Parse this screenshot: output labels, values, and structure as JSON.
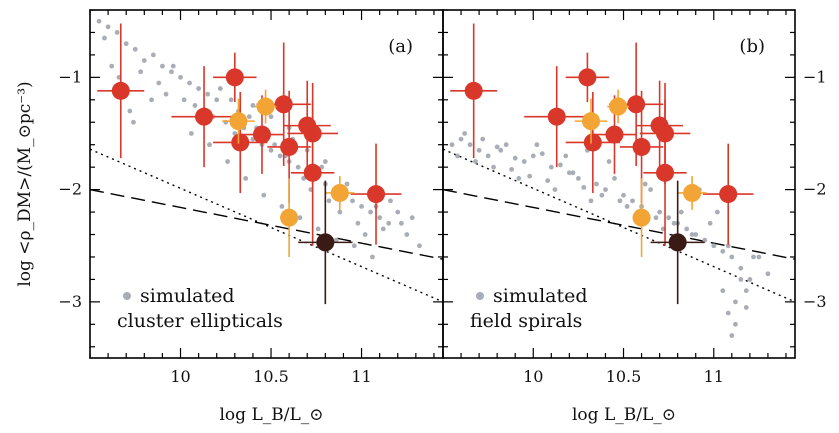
{
  "figure": {
    "ylabel": "log <ρ_DM>/(M_⊙pc⁻³)",
    "panels": [
      "a",
      "b"
    ]
  },
  "chart_data": [
    {
      "panel_label": "(a)",
      "type": "scatter",
      "xlabel": "log L_B/L_⊙",
      "ylabel": "log <ρ_DM>/(M_⊙pc⁻³)",
      "xlim": [
        9.5,
        11.45
      ],
      "ylim": [
        -3.5,
        -0.4
      ],
      "xticks": [
        10,
        10.5,
        11
      ],
      "xtick_labels": [
        "10",
        "10.5",
        "11"
      ],
      "yticks": [
        -1,
        -2,
        -3
      ],
      "ytick_labels": [
        "−1",
        "−2",
        "−3"
      ],
      "legend_label_line1": "simulated",
      "legend_label_line2": "cluster ellipticals",
      "legend_placement": "bottom-left",
      "colors": {
        "simulated": "#a8adb6",
        "red": "#d8372a",
        "orange": "#f2a535",
        "dark": "#3a1a14",
        "line": "#000000"
      },
      "lines": {
        "dashed": {
          "x": [
            9.5,
            11.45
          ],
          "y": [
            -2.0,
            -2.62
          ]
        },
        "dotted": {
          "x": [
            9.5,
            11.45
          ],
          "y": [
            -1.64,
            -3.0
          ]
        }
      },
      "series": [
        {
          "x": [
            9.55,
            9.6,
            9.65,
            9.7,
            9.75,
            9.8,
            9.85,
            9.9,
            9.95,
            10.0,
            10.05,
            10.1,
            10.15,
            10.2,
            9.58,
            9.62,
            9.72,
            9.78,
            9.88,
            9.92,
            10.02,
            10.08,
            10.12,
            10.18,
            10.25,
            10.3,
            10.35,
            10.4,
            10.45,
            10.5,
            10.55,
            10.6,
            10.65,
            10.7,
            10.75,
            10.8,
            10.85,
            10.9,
            10.95,
            11.0,
            11.05,
            11.1,
            11.15,
            11.2,
            11.25,
            10.22,
            10.28,
            10.32,
            10.38,
            10.42,
            10.48,
            10.52,
            10.58,
            10.62,
            10.68,
            10.72,
            10.78,
            10.82,
            10.88,
            10.92,
            10.98,
            11.02,
            11.08,
            11.12,
            9.66,
            9.74,
            9.84,
            9.96,
            10.06,
            10.16,
            10.26,
            10.36,
            10.46,
            10.56,
            10.66,
            10.76,
            10.86,
            10.96,
            11.06,
            11.16,
            11.22,
            11.28,
            11.32,
            10.4,
            10.5,
            10.6,
            10.7,
            10.8,
            10.9
          ],
          "y": [
            -0.5,
            -0.55,
            -0.6,
            -0.7,
            -0.75,
            -0.85,
            -0.8,
            -0.9,
            -0.95,
            -1.0,
            -1.05,
            -1.1,
            -1.15,
            -1.2,
            -0.65,
            -0.9,
            -1.3,
            -0.95,
            -1.05,
            -1.15,
            -1.2,
            -1.25,
            -1.3,
            -1.35,
            -1.4,
            -1.5,
            -1.45,
            -1.55,
            -1.6,
            -1.65,
            -1.7,
            -1.75,
            -1.8,
            -1.85,
            -1.9,
            -1.95,
            -2.0,
            -2.05,
            -2.1,
            -2.15,
            -2.2,
            -2.25,
            -2.3,
            -2.2,
            -2.4,
            -1.1,
            -1.2,
            -1.3,
            -1.35,
            -1.45,
            -1.5,
            -1.6,
            -1.7,
            -1.55,
            -1.9,
            -2.0,
            -1.8,
            -2.1,
            -2.2,
            -1.95,
            -2.3,
            -2.4,
            -2.15,
            -2.35,
            -1.0,
            -1.4,
            -1.2,
            -0.9,
            -1.5,
            -1.6,
            -1.75,
            -1.9,
            -2.05,
            -2.15,
            -2.25,
            -2.35,
            -2.45,
            -2.5,
            -2.6,
            -2.1,
            -2.3,
            -2.25,
            -2.5,
            -1.25,
            -1.35,
            -1.45,
            -1.65,
            -1.75,
            -2.0
          ],
          "role": "simulated"
        },
        {
          "x": [
            9.67,
            10.3,
            10.13,
            10.33,
            10.45,
            10.57,
            10.6,
            10.7,
            10.73,
            10.73,
            11.08
          ],
          "y": [
            -1.12,
            -1.0,
            -1.35,
            -1.58,
            -1.51,
            -1.24,
            -1.62,
            -1.43,
            -1.5,
            -1.85,
            -2.04
          ],
          "xerr": [
            0.13,
            0.12,
            0.18,
            0.15,
            0.12,
            0.15,
            0.12,
            0.13,
            0.14,
            0.12,
            0.14
          ],
          "yerr": [
            0.6,
            0.22,
            0.45,
            0.45,
            0.35,
            0.55,
            0.5,
            0.4,
            0.45,
            0.65,
            0.45
          ],
          "role": "red"
        },
        {
          "x": [
            10.32,
            10.47,
            10.6,
            10.88
          ],
          "y": [
            -1.39,
            -1.26,
            -2.25,
            -2.03
          ],
          "xerr": [
            0.09,
            0.06,
            0.05,
            0.08
          ],
          "yerr": [
            0.2,
            0.15,
            0.35,
            0.15
          ],
          "role": "orange"
        },
        {
          "x": [
            10.8
          ],
          "y": [
            -2.47
          ],
          "xerr": [
            0.15
          ],
          "yerr": [
            0.55
          ],
          "role": "dark"
        }
      ]
    },
    {
      "panel_label": "(b)",
      "type": "scatter",
      "xlabel": "log L_B/L_⊙",
      "ylabel": "log <ρ_DM>/(M_⊙pc⁻³)",
      "xlim": [
        9.5,
        11.45
      ],
      "ylim": [
        -3.5,
        -0.4
      ],
      "xticks": [
        10,
        10.5,
        11
      ],
      "xtick_labels": [
        "10",
        "10.5",
        "11"
      ],
      "yticks": [
        -1,
        -2,
        -3
      ],
      "ytick_labels": [
        "−1",
        "−2",
        "−3"
      ],
      "legend_label_line1": "simulated",
      "legend_label_line2": "field spirals",
      "legend_placement": "bottom-left",
      "colors": {
        "simulated": "#a8adb6",
        "red": "#d8372a",
        "orange": "#f2a535",
        "dark": "#3a1a14",
        "line": "#000000"
      },
      "lines": {
        "dashed": {
          "x": [
            9.5,
            11.45
          ],
          "y": [
            -2.0,
            -2.62
          ]
        },
        "dotted": {
          "x": [
            9.5,
            11.45
          ],
          "y": [
            -1.64,
            -3.0
          ]
        }
      },
      "series": [
        {
          "x": [
            9.55,
            9.6,
            9.65,
            9.7,
            9.75,
            9.8,
            9.85,
            9.9,
            9.95,
            10.0,
            10.05,
            10.1,
            10.15,
            10.2,
            10.25,
            10.3,
            10.35,
            10.4,
            10.45,
            10.5,
            10.55,
            10.6,
            10.65,
            10.7,
            10.75,
            10.8,
            10.85,
            10.9,
            10.95,
            11.0,
            11.05,
            11.1,
            11.15,
            11.2,
            11.25,
            11.3,
            9.58,
            9.68,
            9.78,
            9.88,
            9.98,
            10.08,
            10.18,
            10.28,
            10.38,
            10.48,
            10.58,
            10.68,
            10.78,
            10.88,
            10.98,
            11.08,
            11.18,
            9.62,
            9.72,
            9.82,
            9.92,
            10.02,
            10.12,
            10.22,
            10.32,
            10.42,
            10.52,
            10.62,
            10.72,
            10.82,
            10.92,
            11.02,
            11.12,
            11.22,
            11.08,
            11.1,
            11.05,
            11.12,
            11.15,
            11.18
          ],
          "y": [
            -1.6,
            -1.55,
            -1.6,
            -1.65,
            -1.7,
            -1.62,
            -1.6,
            -1.72,
            -1.75,
            -1.7,
            -1.68,
            -1.8,
            -1.78,
            -1.85,
            -1.9,
            -1.65,
            -1.95,
            -2.0,
            -1.9,
            -2.05,
            -2.1,
            -2.15,
            -2.0,
            -2.2,
            -2.25,
            -2.3,
            -2.35,
            -2.4,
            -2.45,
            -2.5,
            -2.55,
            -2.6,
            -2.7,
            -2.8,
            -2.6,
            -2.75,
            -1.7,
            -1.75,
            -1.8,
            -1.82,
            -1.88,
            -1.92,
            -1.7,
            -1.98,
            -2.05,
            -2.1,
            -2.2,
            -2.25,
            -2.3,
            -2.4,
            -2.3,
            -2.5,
            -2.9,
            -1.5,
            -1.55,
            -1.65,
            -1.9,
            -1.6,
            -2.0,
            -1.85,
            -2.1,
            -1.75,
            -2.15,
            -1.95,
            -2.35,
            -2.2,
            -2.0,
            -2.2,
            -3.0,
            -2.6,
            -3.1,
            -3.3,
            -2.9,
            -3.2,
            -2.8,
            -3.05
          ],
          "role": "simulated"
        },
        {
          "x": [
            9.67,
            10.3,
            10.13,
            10.33,
            10.45,
            10.57,
            10.6,
            10.7,
            10.73,
            10.73,
            11.08
          ],
          "y": [
            -1.12,
            -1.0,
            -1.35,
            -1.58,
            -1.51,
            -1.24,
            -1.62,
            -1.43,
            -1.5,
            -1.85,
            -2.04
          ],
          "xerr": [
            0.13,
            0.12,
            0.18,
            0.15,
            0.12,
            0.15,
            0.12,
            0.13,
            0.14,
            0.12,
            0.14
          ],
          "yerr": [
            0.6,
            0.22,
            0.45,
            0.45,
            0.35,
            0.55,
            0.5,
            0.4,
            0.45,
            0.65,
            0.45
          ],
          "role": "red"
        },
        {
          "x": [
            10.32,
            10.47,
            10.6,
            10.88
          ],
          "y": [
            -1.39,
            -1.26,
            -2.25,
            -2.03
          ],
          "xerr": [
            0.09,
            0.06,
            0.05,
            0.08
          ],
          "yerr": [
            0.2,
            0.15,
            0.35,
            0.15
          ],
          "role": "orange"
        },
        {
          "x": [
            10.8
          ],
          "y": [
            -2.47
          ],
          "xerr": [
            0.15
          ],
          "yerr": [
            0.55
          ],
          "role": "dark"
        }
      ]
    }
  ]
}
